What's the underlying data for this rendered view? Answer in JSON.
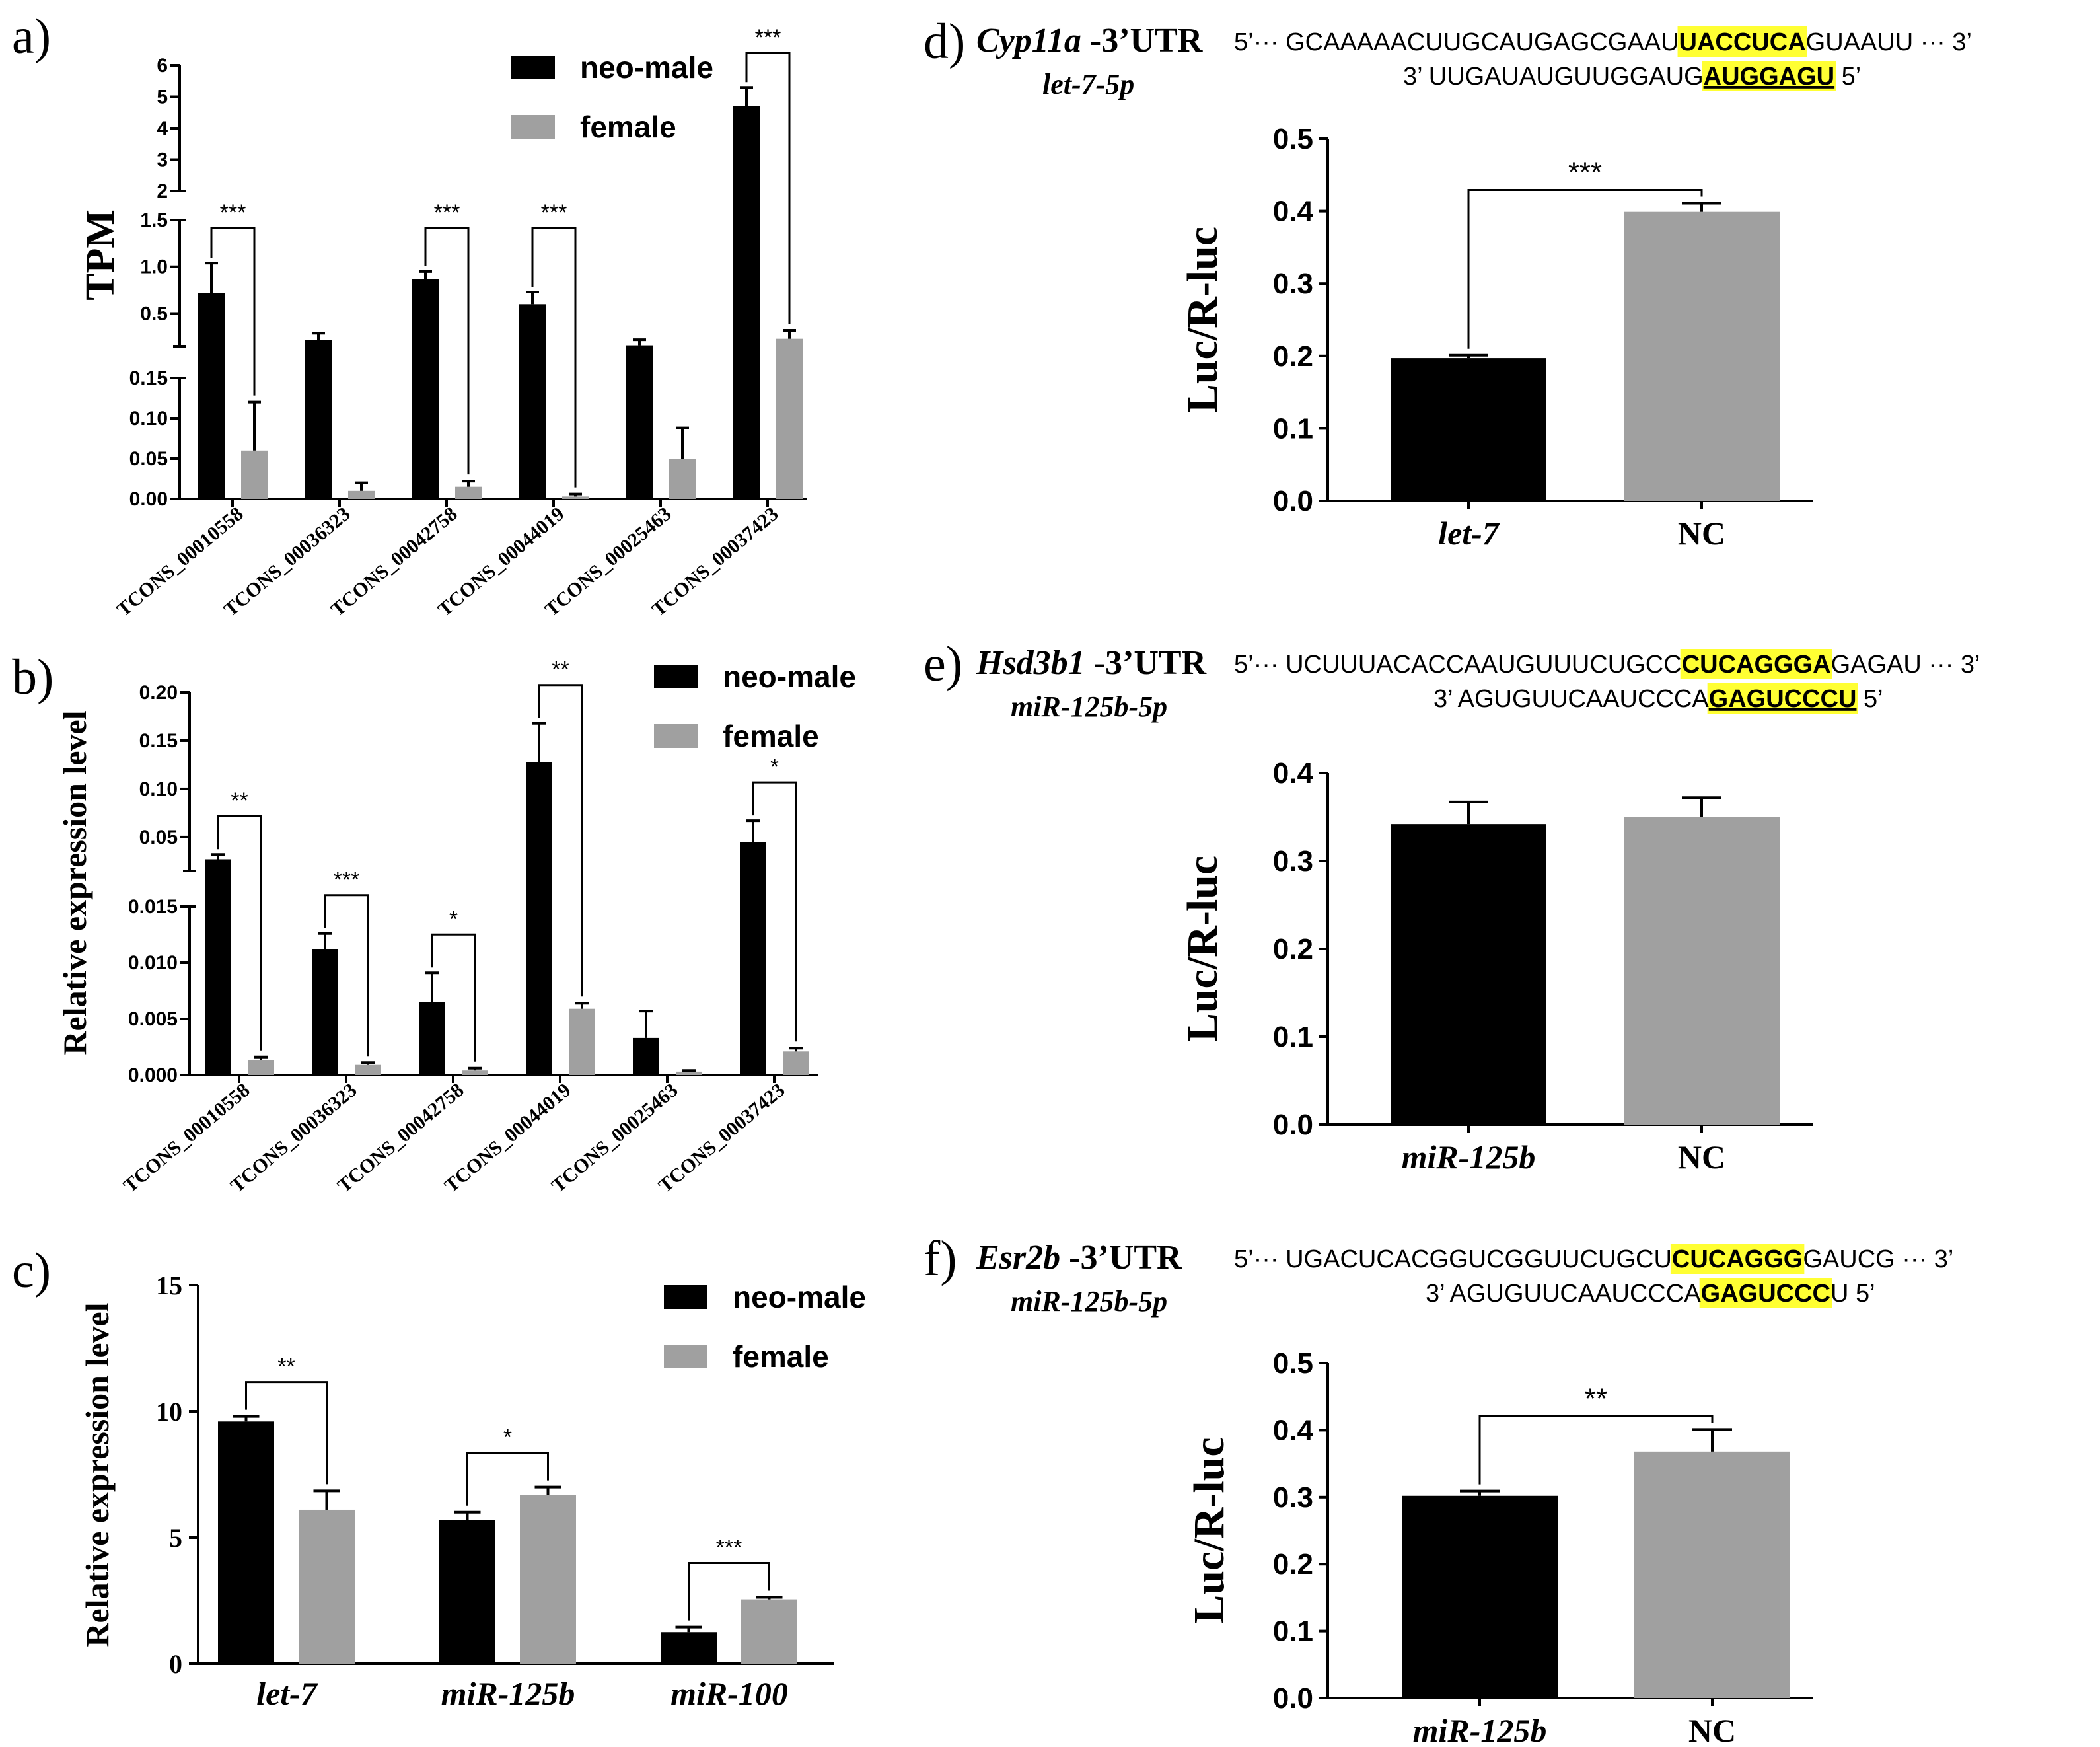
{
  "colors": {
    "neo_male": "#000000",
    "female": "#a0a0a0",
    "highlight": "#ffff33",
    "axis": "#000000"
  },
  "legend": {
    "series_1": "neo-male",
    "series_2": "female"
  },
  "chart_data": [
    {
      "panel": "a)",
      "type": "bar",
      "ylabel": "TPM",
      "categories": [
        "TCONS_00010558",
        "TCONS_00036323",
        "TCONS_00042758",
        "TCONS_00044019",
        "TCONS_00025463",
        "TCONS_00037423"
      ],
      "y_segments": [
        {
          "range": [
            0,
            0.15
          ],
          "ticks": [
            "0.00",
            "0.05",
            "0.10",
            "0.15"
          ]
        },
        {
          "range": [
            0.15,
            1.5
          ],
          "ticks": [
            "0.5",
            "1.0",
            "1.5"
          ]
        },
        {
          "range": [
            2,
            6
          ],
          "ticks": [
            "2",
            "3",
            "4",
            "5",
            "6"
          ]
        }
      ],
      "series": [
        {
          "name": "neo-male",
          "values": [
            0.72,
            0.22,
            0.87,
            0.6,
            0.16,
            4.7
          ],
          "errors": [
            0.32,
            0.07,
            0.08,
            0.13,
            0.06,
            0.6
          ]
        },
        {
          "name": "female",
          "values": [
            0.06,
            0.01,
            0.015,
            0.003,
            0.05,
            0.23
          ],
          "errors": [
            0.06,
            0.01,
            0.007,
            0.003,
            0.038,
            0.09
          ]
        }
      ],
      "significance": [
        "***",
        "",
        "***",
        "***",
        "",
        "***"
      ]
    },
    {
      "panel": "b)",
      "type": "bar",
      "ylabel": "Relative expression level",
      "categories": [
        "TCONS_00010558",
        "TCONS_00036323",
        "TCONS_00042758",
        "TCONS_00044019",
        "TCONS_00025463",
        "TCONS_00037423"
      ],
      "y_segments": [
        {
          "range": [
            0,
            0.015
          ],
          "ticks": [
            "0.000",
            "0.005",
            "0.010",
            "0.015"
          ]
        },
        {
          "range": [
            0.015,
            0.2
          ],
          "ticks": [
            "0.05",
            "0.10",
            "0.15",
            "0.20"
          ]
        }
      ],
      "series": [
        {
          "name": "neo-male",
          "values": [
            0.027,
            0.0112,
            0.0065,
            0.128,
            0.0033,
            0.045
          ],
          "errors": [
            0.005,
            0.0014,
            0.0026,
            0.04,
            0.0024,
            0.022
          ]
        },
        {
          "name": "female",
          "values": [
            0.0013,
            0.0009,
            0.0004,
            0.0059,
            0.0003,
            0.0021
          ],
          "errors": [
            0.0003,
            0.0002,
            0.0002,
            0.0005,
            0.0001,
            0.0003
          ]
        }
      ],
      "significance": [
        "**",
        "***",
        "*",
        "**",
        "",
        "*"
      ]
    },
    {
      "panel": "c)",
      "type": "bar",
      "ylabel": "Relative expression level",
      "categories": [
        "let-7",
        "miR-125b",
        "miR-100"
      ],
      "ylim": [
        0,
        15
      ],
      "yticks": [
        "0",
        "5",
        "10",
        "15"
      ],
      "series": [
        {
          "name": "neo-male",
          "values": [
            9.6,
            5.7,
            1.25
          ],
          "errors": [
            0.2,
            0.3,
            0.2
          ]
        },
        {
          "name": "female",
          "values": [
            6.1,
            6.7,
            2.55
          ],
          "errors": [
            0.75,
            0.3,
            0.08
          ]
        }
      ],
      "significance": [
        "**",
        "*",
        "***"
      ]
    },
    {
      "panel": "d)",
      "type": "bar",
      "gene": "Cyp11a",
      "utr": "-3’UTR",
      "mirna": "let-7-5p",
      "target_seq": {
        "pre": "5’··· GCAAAAACUUGCAUGAGCGAAU",
        "site": "UACCUCA",
        "post": "GUAAUU ··· 3’"
      },
      "mirna_seq": {
        "pre": "3’ UUGAUAUGUUGGAUG",
        "site": "AUGGAGU",
        "post": " 5’"
      },
      "ylabel": "Luc/R-luc",
      "ylim": [
        0,
        0.5
      ],
      "yticks": [
        "0.0",
        "0.1",
        "0.2",
        "0.3",
        "0.4",
        "0.5"
      ],
      "categories": [
        "let-7",
        "NC"
      ],
      "values": [
        0.197,
        0.399
      ],
      "errors": [
        0.004,
        0.012
      ],
      "significance": "***"
    },
    {
      "panel": "e)",
      "type": "bar",
      "gene": "Hsd3b1",
      "utr": "-3’UTR",
      "mirna": "miR-125b-5p",
      "target_seq": {
        "pre": "5’··· UCUUUACACCAAUGUUUCUGCC",
        "site": "CUCAGGGA",
        "post": "GAGAU ··· 3’"
      },
      "mirna_seq": {
        "pre": "3’ AGUGUUCAAUCCCA",
        "site": "GAGUCCCU",
        "post": " 5’"
      },
      "ylabel": "Luc/R-luc",
      "ylim": [
        0,
        0.4
      ],
      "yticks": [
        "0.0",
        "0.1",
        "0.2",
        "0.3",
        "0.4"
      ],
      "categories": [
        "miR-125b",
        "NC"
      ],
      "values": [
        0.342,
        0.35
      ],
      "errors": [
        0.025,
        0.022
      ],
      "significance": ""
    },
    {
      "panel": "f)",
      "type": "bar",
      "gene": "Esr2b",
      "utr": "-3’UTR",
      "mirna": "miR-125b-5p",
      "target_seq": {
        "pre": "5’··· UGACUCACGGUCGGUUCUGCU",
        "site": "CUCAGGG",
        "post": "GAUCG ··· 3’"
      },
      "mirna_seq": {
        "pre": "3’ AGUGUUCAAUCCCA",
        "site": "GAGUCCC",
        "post": "U 5’"
      },
      "ylabel": "Luc/R-luc",
      "ylim": [
        0,
        0.5
      ],
      "yticks": [
        "0.0",
        "0.1",
        "0.2",
        "0.3",
        "0.4",
        "0.5"
      ],
      "categories": [
        "miR-125b",
        "NC"
      ],
      "values": [
        0.302,
        0.368
      ],
      "errors": [
        0.007,
        0.033
      ],
      "significance": "**"
    }
  ]
}
